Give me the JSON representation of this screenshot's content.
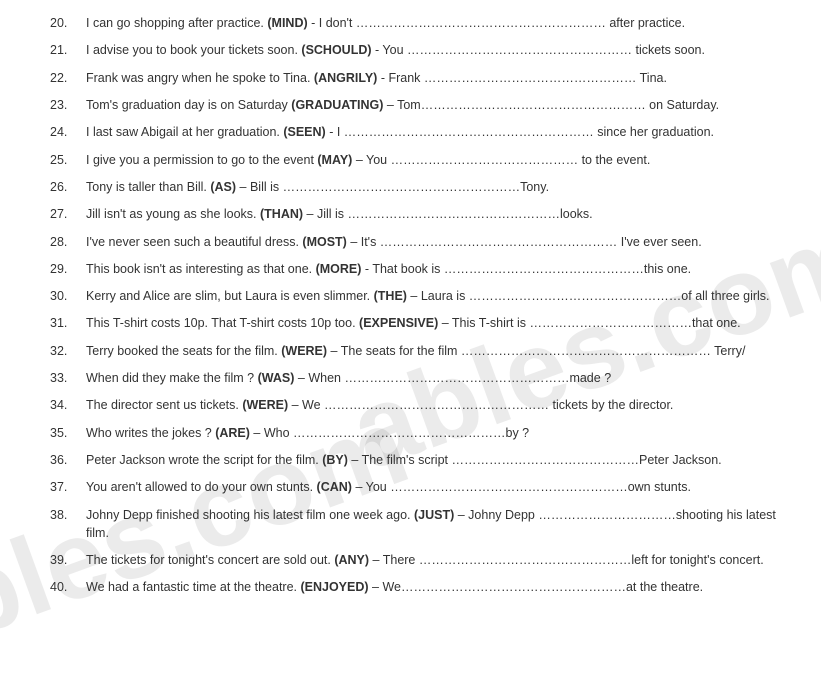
{
  "watermark_text": "ables.com",
  "items": [
    {
      "n": "20.",
      "pre": "I can go shopping after practice. ",
      "kw": "(MIND)",
      "post": " - I don't …………………………………………………… after practice."
    },
    {
      "n": "21.",
      "pre": "I advise you to book your tickets soon. ",
      "kw": "(SCHOULD)",
      "post": " - You ……………………………………………… tickets soon."
    },
    {
      "n": "22.",
      "pre": "Frank was angry when he spoke to Tina. ",
      "kw": "(ANGRILY)",
      "post": " - Frank …………………………………………… Tina."
    },
    {
      "n": "23.",
      "pre": "Tom's graduation day is on Saturday ",
      "kw": "(GRADUATING)",
      "post": " – Tom……………………………………………… on Saturday."
    },
    {
      "n": "24.",
      "pre": "I last saw Abigail at her graduation. ",
      "kw": "(SEEN)",
      "post": " -  I …………………………………………………… since her graduation."
    },
    {
      "n": "25.",
      "pre": "I give you a permission to go to the event ",
      "kw": "(MAY)",
      "post": " – You ……………………………………… to the event."
    },
    {
      "n": "26.",
      "pre": "Tony is taller than Bill. ",
      "kw": "(AS)",
      "post": " – Bill is …………………………………………………Tony."
    },
    {
      "n": "27.",
      "pre": " Jill isn't as young as she looks. ",
      "kw": "(THAN)",
      "post": " – Jill is ……………………………………………looks."
    },
    {
      "n": "28.",
      "pre": "I've never seen such a beautiful dress. ",
      "kw": "(MOST)",
      "post": " – It's ………………………………………………… I've ever seen."
    },
    {
      "n": "29.",
      "pre": "This book isn't as interesting as that one. ",
      "kw": "(MORE)",
      "post": " -  That book is …………………………………………this one."
    },
    {
      "n": "30.",
      "pre": "Kerry and Alice are slim, but Laura is even slimmer. ",
      "kw": "(THE)",
      "post": " – Laura is ……………………………………………of all three girls."
    },
    {
      "n": "31.",
      "pre": "This T-shirt costs 10p. That T-shirt costs 10p too. ",
      "kw": "(EXPENSIVE)",
      "post": " – This T-shirt is …………………………………that one."
    },
    {
      "n": "32.",
      "pre": "Terry booked the seats for the film. ",
      "kw": "(WERE)",
      "post": " – The seats for the film …………………………………………………… Terry/"
    },
    {
      "n": "33.",
      "pre": "When did they make the film ? ",
      "kw": "(WAS)",
      "post": " – When ………………………………………………made ?"
    },
    {
      "n": "34.",
      "pre": "The director sent us tickets. ",
      "kw": "(WERE)",
      "post": " – We ……………………………………………… tickets by the director."
    },
    {
      "n": "35.",
      "pre": "Who writes the jokes ? ",
      "kw": "(ARE)",
      "post": " – Who ……………………………………………by ?"
    },
    {
      "n": "36.",
      "pre": "Peter Jackson wrote the script for the film. ",
      "kw": "(BY)",
      "post": " – The film's script ………………………………………Peter Jackson."
    },
    {
      "n": "37.",
      "pre": "You aren't allowed to do your own stunts. ",
      "kw": "(CAN)",
      "post": " – You …………………………………………………own stunts."
    },
    {
      "n": "38.",
      "pre": "Johny Depp finished shooting his latest film one week ago. ",
      "kw": "(JUST)",
      "post": " – Johny Depp ……………………………shooting his latest film."
    },
    {
      "n": "39.",
      "pre": "The tickets for tonight's concert are sold out. ",
      "kw": "(ANY)",
      "post": " – There ……………………………………………left for tonight's concert."
    },
    {
      "n": "40.",
      "pre": "We had a fantastic time at the theatre. ",
      "kw": "(ENJOYED)",
      "post": " – We………………………………………………at the theatre."
    }
  ]
}
